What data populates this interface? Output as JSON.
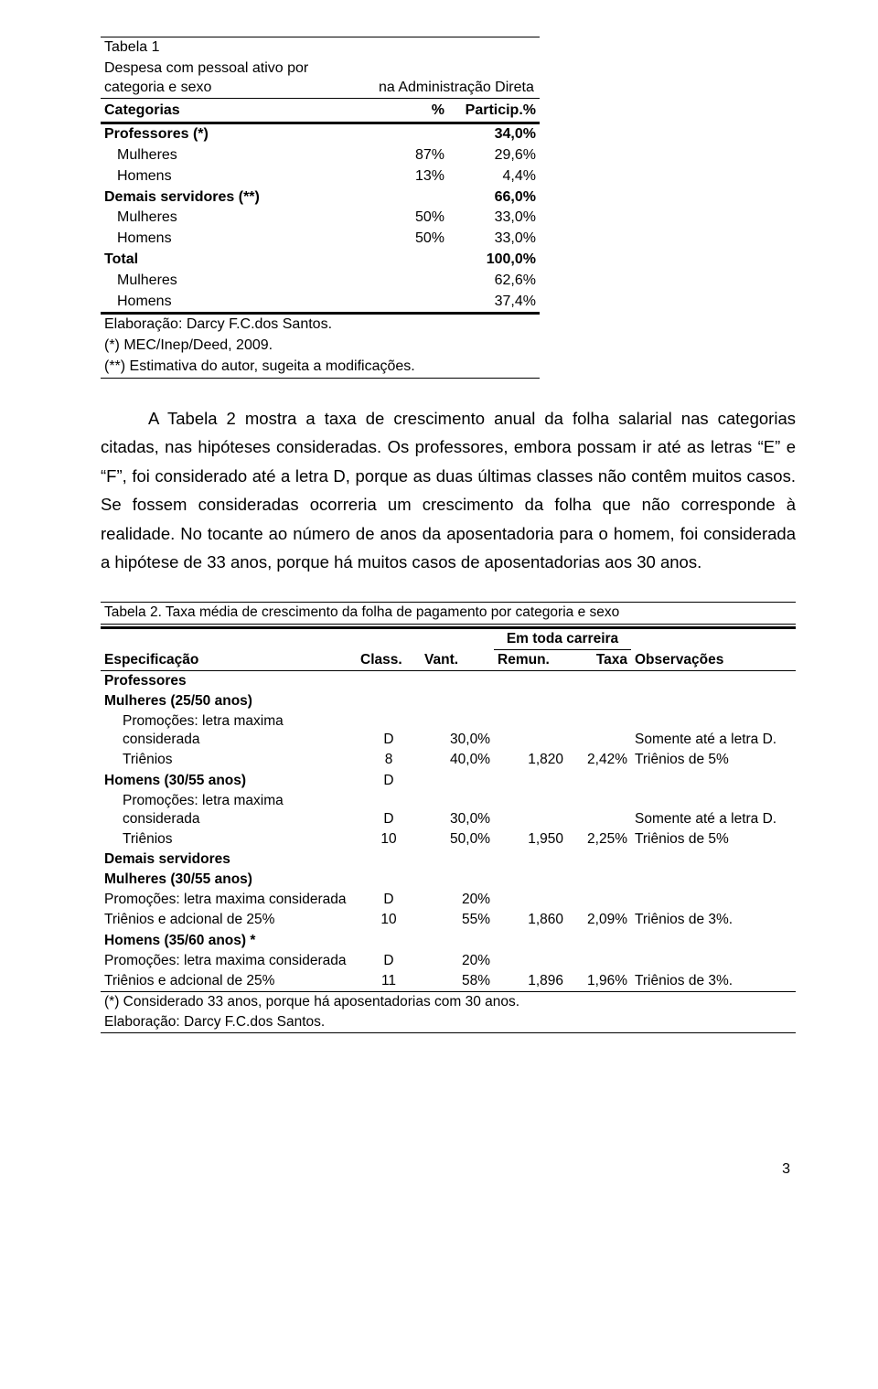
{
  "table1": {
    "title": "Tabela 1",
    "caption_a": "Despesa com pessoal ativo por categoria e sexo",
    "caption_b": "na Administração Direta",
    "header_cat": "Categorias",
    "header_pct": "%",
    "header_particip": "Particip.%",
    "rows": [
      {
        "label": "Professores (*)",
        "pct": "",
        "particip": "34,0%",
        "bold": true,
        "indent": 0
      },
      {
        "label": "Mulheres",
        "pct": "87%",
        "particip": "29,6%",
        "bold": false,
        "indent": 1
      },
      {
        "label": "Homens",
        "pct": "13%",
        "particip": "4,4%",
        "bold": false,
        "indent": 1
      },
      {
        "label": "Demais servidores (**)",
        "pct": "",
        "particip": "66,0%",
        "bold": true,
        "indent": 0
      },
      {
        "label": "Mulheres",
        "pct": "50%",
        "particip": "33,0%",
        "bold": false,
        "indent": 1
      },
      {
        "label": "Homens",
        "pct": "50%",
        "particip": "33,0%",
        "bold": false,
        "indent": 1
      },
      {
        "label": "Total",
        "pct": "",
        "particip": "100,0%",
        "bold": true,
        "indent": 0
      },
      {
        "label": "Mulheres",
        "pct": "",
        "particip": "62,6%",
        "bold": false,
        "indent": 1
      },
      {
        "label": "Homens",
        "pct": "",
        "particip": "37,4%",
        "bold": false,
        "indent": 1
      }
    ],
    "note1": "Elaboração: Darcy F.C.dos Santos.",
    "note2": "(*) MEC/Inep/Deed, 2009.",
    "note3": "(**) Estimativa do autor, sugeita a modificações."
  },
  "paragraph": "A Tabela 2 mostra a taxa de crescimento anual da folha salarial nas categorias citadas, nas hipóteses consideradas. Os professores, embora possam ir até as letras “E” e “F”, foi considerado até a letra D, porque as duas últimas classes não contêm muitos casos. Se fossem consideradas ocorreria um crescimento da folha que não corresponde à realidade. No tocante ao número de anos da aposentadoria para o homem, foi considerada a hipótese de  33 anos, porque há muitos casos de aposentadorias aos 30 anos.",
  "table2": {
    "title": "Tabela 2. Taxa média de crescimento da folha de pagamento por categoria e sexo",
    "super_header": "Em toda carreira",
    "headers": {
      "espec": "Especificação",
      "class": "Class.",
      "vant": "Vant.",
      "remun": "Remun.",
      "taxa": "Taxa",
      "obs": "Observações"
    },
    "rows": [
      {
        "espec": "Professores",
        "class": "",
        "vant": "",
        "remun": "",
        "taxa": "",
        "obs": "",
        "bold": true,
        "indent": 0
      },
      {
        "espec": "Mulheres (25/50 anos)",
        "class": "",
        "vant": "",
        "remun": "",
        "taxa": "",
        "obs": "",
        "bold": true,
        "indent": 0
      },
      {
        "espec": "Promoções: letra maxima considerada",
        "class": "D",
        "vant": "30,0%",
        "remun": "",
        "taxa": "",
        "obs": "Somente até a letra D.",
        "bold": false,
        "indent": 2
      },
      {
        "espec": "Triênios",
        "class": "8",
        "vant": "40,0%",
        "remun": "1,820",
        "taxa": "2,42%",
        "obs": "Triênios de 5%",
        "bold": false,
        "indent": 2
      },
      {
        "espec": "Homens (30/55 anos)",
        "class": "D",
        "vant": "",
        "remun": "",
        "taxa": "",
        "obs": "",
        "bold": true,
        "indent": 0
      },
      {
        "espec": "Promoções: letra maxima considerada",
        "class": "D",
        "vant": "30,0%",
        "remun": "",
        "taxa": "",
        "obs": "Somente até a letra D.",
        "bold": false,
        "indent": 2
      },
      {
        "espec": "Triênios",
        "class": "10",
        "vant": "50,0%",
        "remun": "1,950",
        "taxa": "2,25%",
        "obs": "Triênios de 5%",
        "bold": false,
        "indent": 2
      },
      {
        "espec": "Demais servidores",
        "class": "",
        "vant": "",
        "remun": "",
        "taxa": "",
        "obs": "",
        "bold": true,
        "indent": 0
      },
      {
        "espec": "Mulheres (30/55 anos)",
        "class": "",
        "vant": "",
        "remun": "",
        "taxa": "",
        "obs": "",
        "bold": true,
        "indent": 0
      },
      {
        "espec": "Promoções: letra maxima considerada",
        "class": "D",
        "vant": "20%",
        "remun": "",
        "taxa": "",
        "obs": "",
        "bold": false,
        "indent": 0
      },
      {
        "espec": "Triênios e adcional de 25%",
        "class": "10",
        "vant": "55%",
        "remun": "1,860",
        "taxa": "2,09%",
        "obs": "Triênios de 3%.",
        "bold": false,
        "indent": 0
      },
      {
        "espec": "Homens (35/60 anos) *",
        "class": "",
        "vant": "",
        "remun": "",
        "taxa": "",
        "obs": "",
        "bold": true,
        "indent": 0
      },
      {
        "espec": "Promoções: letra maxima considerada",
        "class": "D",
        "vant": "20%",
        "remun": "",
        "taxa": "",
        "obs": "",
        "bold": false,
        "indent": 0
      },
      {
        "espec": "Triênios e adcional de 25%",
        "class": "11",
        "vant": "58%",
        "remun": "1,896",
        "taxa": "1,96%",
        "obs": "Triênios de 3%.",
        "bold": false,
        "indent": 0
      }
    ],
    "footnote1": "(*) Considerado 33 anos, porque há aposentadorias com 30 anos.",
    "footnote2": "Elaboração: Darcy F.C.dos Santos."
  },
  "page_number": "3"
}
